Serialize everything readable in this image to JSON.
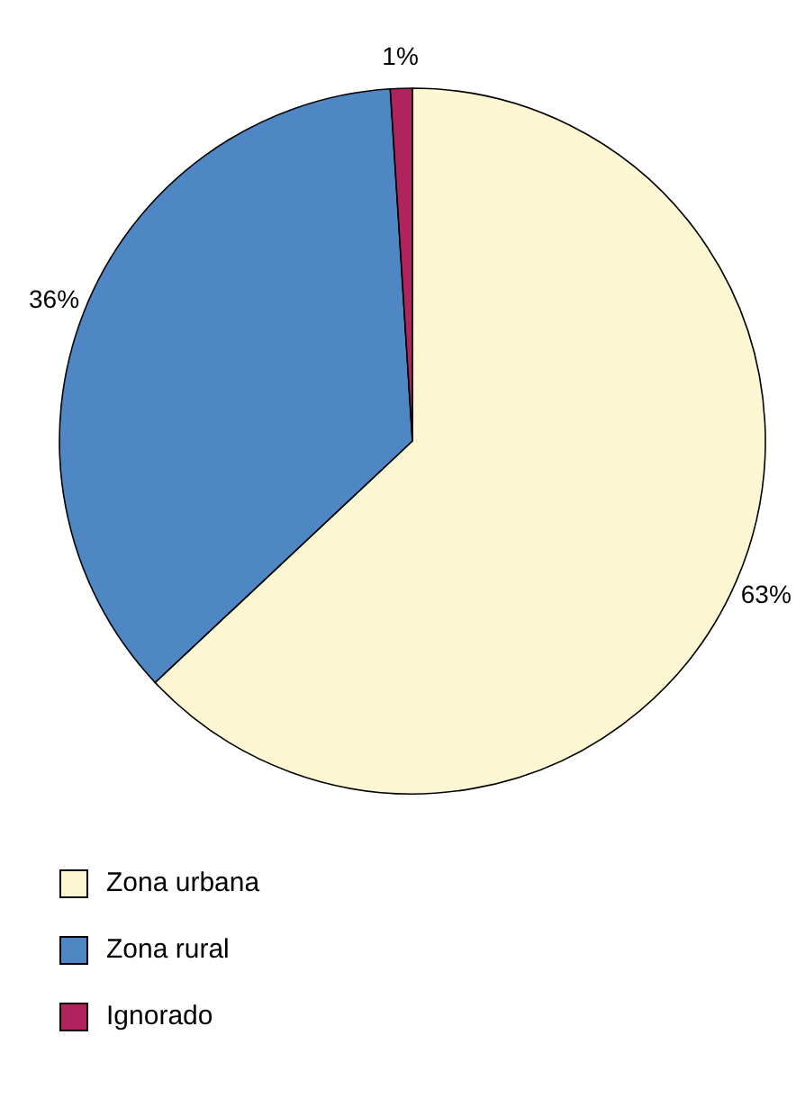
{
  "chart_data": {
    "type": "pie",
    "categories": [
      "Zona urbana",
      "Zona rural",
      "Ignorado"
    ],
    "values": [
      63,
      36,
      1
    ],
    "colors": [
      "#fdf6d3",
      "#4f87c5",
      "#b0245e"
    ],
    "value_labels": [
      "63%",
      "36%",
      "1%"
    ],
    "legend": "bottom left"
  }
}
